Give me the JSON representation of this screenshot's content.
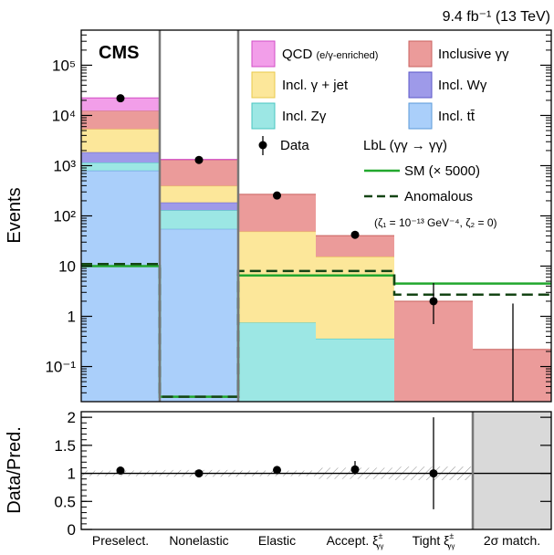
{
  "chart_data": {
    "type": "bar",
    "stacked": true,
    "yscale": "log",
    "lumi_label": "9.4 fb⁻¹ (13 TeV)",
    "experiment_label": "CMS",
    "ylabel": "Events",
    "ratio_ylabel": "Data/Pred.",
    "categories": [
      "Preselect.",
      "Nonelastic",
      "Elastic",
      "Accept. ξ±γγ",
      "Tight ξ±γγ",
      "2σ match."
    ],
    "ylim": [
      0.02,
      500000
    ],
    "yticks": [
      {
        "label": "10⁻¹",
        "value": 0.1
      },
      {
        "label": "1",
        "value": 1
      },
      {
        "label": "10",
        "value": 10
      },
      {
        "label": "10²",
        "value": 100
      },
      {
        "label": "10³",
        "value": 1000
      },
      {
        "label": "10⁴",
        "value": 10000
      },
      {
        "label": "10⁵",
        "value": 100000
      }
    ],
    "series": [
      {
        "name": "Incl. tt̄",
        "color": "#aacffa",
        "values": [
          800,
          55,
          0,
          0,
          0,
          0
        ]
      },
      {
        "name": "Incl. Zγ",
        "color": "#9ce7e4",
        "values": [
          350,
          75,
          0.75,
          0.36,
          0,
          0
        ]
      },
      {
        "name": "Incl. Wγ",
        "color": "#9e9ae9",
        "values": [
          700,
          55,
          0,
          0,
          0,
          0
        ]
      },
      {
        "name": "Incl. γ + jet",
        "color": "#fce79a",
        "values": [
          3500,
          210,
          48,
          15,
          0,
          0
        ]
      },
      {
        "name": "Inclusive γγ",
        "color": "#eb9b9a",
        "values": [
          7000,
          900,
          220,
          25,
          2.0,
          0.22
        ]
      },
      {
        "name": "QCD (e/γ-enriched)",
        "color": "#f29ee9",
        "values": [
          10000,
          40,
          0,
          0,
          0,
          0
        ]
      }
    ],
    "data": {
      "name": "Data",
      "values": [
        22000,
        1300,
        255,
        42,
        2.0,
        null
      ],
      "err_low": [
        null,
        null,
        null,
        null,
        1.3,
        null
      ],
      "err_high": [
        null,
        null,
        null,
        null,
        2.6,
        null
      ]
    },
    "lbl_header": "LbL (γγ → γγ)",
    "lines": [
      {
        "name": "SM (× 5000)",
        "color": "#22a82e",
        "dash": "solid",
        "values": [
          10,
          0.025,
          6.5,
          6.5,
          4.5,
          4.5
        ]
      },
      {
        "name": "Anomalous",
        "color": "#154515",
        "dash": "dashed",
        "values": [
          11,
          0.025,
          8,
          8,
          2.7,
          2.7
        ]
      }
    ],
    "anomalous_note": "(ζ₁ = 10⁻¹³ GeV⁻⁴, ζ₂ = 0)",
    "ratio": {
      "ylim": [
        0,
        2.1
      ],
      "yticks": [
        {
          "label": "0",
          "value": 0
        },
        {
          "label": "0.5",
          "value": 0.5
        },
        {
          "label": "1",
          "value": 1
        },
        {
          "label": "1.5",
          "value": 1.5
        },
        {
          "label": "2",
          "value": 2
        }
      ],
      "values": [
        1.05,
        1.0,
        1.06,
        1.07,
        1.0,
        null
      ],
      "err_low": [
        0,
        0,
        0,
        0.09,
        0.64,
        null
      ],
      "err_high": [
        0,
        0,
        0,
        0.15,
        1.0,
        null
      ],
      "unc_band": [
        0.05,
        0.06,
        0.05,
        0.1,
        0.12,
        null
      ]
    }
  }
}
